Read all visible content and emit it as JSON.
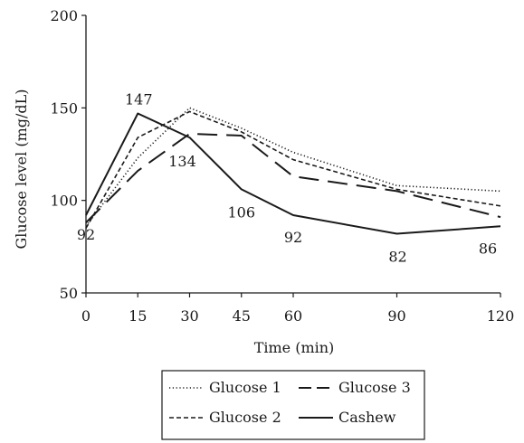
{
  "chart_data": {
    "type": "line",
    "title": "",
    "xlabel": "Time (min)",
    "ylabel": "Glucose level (mg/dL)",
    "x": [
      0,
      15,
      30,
      45,
      60,
      90,
      120
    ],
    "xlim": [
      0,
      120
    ],
    "ylim": [
      50,
      200
    ],
    "xticks": [
      "0",
      "15",
      "30",
      "45",
      "60",
      "90",
      "120"
    ],
    "yticks": [
      "50",
      "100",
      "150",
      "200"
    ],
    "grid": false,
    "legend_position": "bottom",
    "series": [
      {
        "name": "Glucose 1",
        "style": "dotted",
        "values": [
          86,
          123,
          150,
          139,
          126,
          108,
          105
        ]
      },
      {
        "name": "Glucose 2",
        "style": "dashed",
        "values": [
          85,
          134,
          148,
          137,
          122,
          106,
          97
        ]
      },
      {
        "name": "Glucose 3",
        "style": "long-dashed",
        "values": [
          88,
          116,
          136,
          135,
          113,
          105,
          91
        ]
      },
      {
        "name": "Cashew",
        "style": "solid",
        "values": [
          92,
          147,
          134,
          106,
          92,
          82,
          86
        ]
      }
    ],
    "data_labels": [
      "92",
      "147",
      "134",
      "106",
      "92",
      "82",
      "86"
    ],
    "line_color": "#1a1a1a"
  }
}
